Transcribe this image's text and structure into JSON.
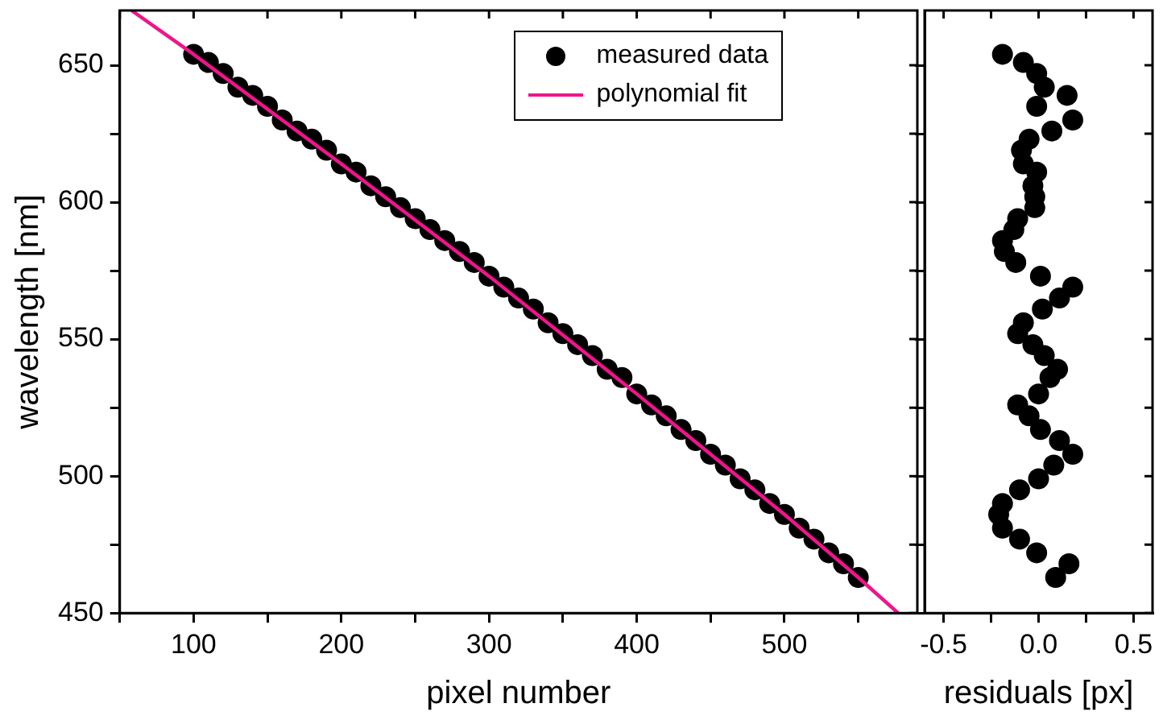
{
  "chart_data": [
    {
      "type": "scatter",
      "xlabel": "pixel number",
      "ylabel": "wavelength [nm]",
      "legend": "top right",
      "x": [
        100,
        110,
        120,
        130,
        140,
        150,
        160,
        170,
        180,
        190,
        200,
        210,
        220,
        230,
        240,
        250,
        260,
        270,
        280,
        290,
        300,
        310,
        320,
        330,
        340,
        350,
        360,
        370,
        380,
        390,
        400,
        410,
        420,
        430,
        440,
        450,
        460,
        470,
        480,
        490,
        500,
        510,
        520,
        530,
        540,
        550
      ],
      "series": [
        {
          "name": "measured data",
          "color": "#000000",
          "marker": "circle",
          "values": [
            654,
            651,
            647,
            642,
            639,
            635,
            630,
            626,
            623,
            619,
            614,
            611,
            606,
            602,
            598,
            594,
            590,
            586,
            582,
            578,
            573,
            569,
            565,
            561,
            556,
            552,
            548,
            544,
            539,
            536,
            530,
            526,
            522,
            517,
            513,
            508,
            504,
            499,
            495,
            490,
            486,
            481,
            477,
            472,
            468,
            463
          ]
        },
        {
          "name": "polynomial fit",
          "type": "line",
          "color": "#f0148c",
          "marker": "none",
          "line_style": "solid",
          "x": [
            58,
            100,
            200,
            300,
            400,
            500,
            550,
            577
          ],
          "values": [
            670,
            654,
            614,
            573,
            530,
            486,
            463,
            450
          ]
        }
      ],
      "xlim": [
        50,
        590
      ],
      "xticks": [
        {
          "value": 50,
          "label": null
        },
        100,
        {
          "value": 150,
          "label": null
        },
        200,
        {
          "value": 250,
          "label": null
        },
        300,
        {
          "value": 350,
          "label": null
        },
        400,
        {
          "value": 450,
          "label": null
        },
        500,
        {
          "value": 550,
          "label": null
        }
      ],
      "ylim": [
        450,
        670
      ],
      "yticks": [
        450,
        {
          "value": 475,
          "label": null
        },
        500,
        {
          "value": 525,
          "label": null
        },
        550,
        {
          "value": 575,
          "label": null
        },
        600,
        {
          "value": 625,
          "label": null
        },
        650
      ]
    },
    {
      "type": "scatter",
      "xlabel": "residuals [px]",
      "tick_labels": "x",
      "series": [
        {
          "color": "#000000",
          "marker": "circle",
          "x": [
            -0.19,
            -0.08,
            -0.01,
            0.03,
            0.15,
            -0.01,
            0.18,
            0.07,
            -0.05,
            -0.09,
            -0.08,
            -0.01,
            -0.03,
            -0.02,
            -0.02,
            -0.11,
            -0.13,
            -0.19,
            -0.18,
            -0.12,
            0.01,
            0.18,
            0.11,
            0.02,
            -0.08,
            -0.11,
            -0.03,
            0.03,
            0.1,
            0.06,
            0.0,
            -0.11,
            -0.05,
            0.01,
            0.11,
            0.18,
            0.08,
            0.0,
            -0.1,
            -0.19,
            -0.21,
            -0.19,
            -0.1,
            -0.01,
            0.16,
            0.09
          ],
          "values": [
            654,
            651,
            647,
            642,
            639,
            635,
            630,
            626,
            623,
            619,
            614,
            611,
            606,
            602,
            598,
            594,
            590,
            586,
            582,
            578,
            573,
            569,
            565,
            561,
            556,
            552,
            548,
            544,
            539,
            536,
            530,
            526,
            522,
            517,
            513,
            508,
            504,
            499,
            495,
            490,
            486,
            481,
            477,
            472,
            468,
            463
          ]
        }
      ],
      "xlim": [
        -0.6,
        0.6
      ],
      "xticks": [
        -0.5,
        {
          "value": -0.25,
          "label": null
        },
        {
          "value": 0,
          "label": "0.0"
        },
        {
          "value": 0.25,
          "label": null
        },
        0.5
      ],
      "ylim": [
        450,
        670
      ],
      "yticks": [
        450,
        {
          "value": 475,
          "label": null
        },
        500,
        {
          "value": 525,
          "label": null
        },
        550,
        {
          "value": 575,
          "label": null
        },
        600,
        {
          "value": 625,
          "label": null
        },
        650
      ]
    }
  ]
}
